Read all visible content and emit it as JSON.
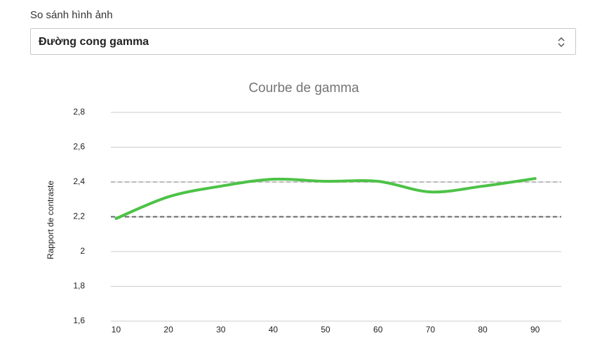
{
  "form": {
    "label": "So sánh hình ảnh",
    "select_value": "Đường cong gamma"
  },
  "chart_data": {
    "type": "line",
    "title": "Courbe de gamma",
    "y_label": "Rapport de contraste",
    "x": [
      10,
      20,
      30,
      40,
      50,
      60,
      70,
      80,
      90
    ],
    "series": [
      {
        "color": "#4dc247",
        "values": [
          2.19,
          2.315,
          2.376,
          2.416,
          2.404,
          2.404,
          2.343,
          2.376,
          2.42
        ]
      }
    ],
    "reference_lines": [
      {
        "value": 2.4,
        "color": "#bbbbbb"
      },
      {
        "value": 2.2,
        "color": "#666666"
      }
    ],
    "xlim": [
      9,
      95
    ],
    "xticks": [
      10,
      20,
      30,
      40,
      50,
      60,
      70,
      80,
      90
    ],
    "ylim": [
      1.6,
      2.8
    ],
    "yticks": [
      {
        "value": 1.6,
        "label": "1,6"
      },
      {
        "value": 1.8,
        "label": "1,8"
      },
      2,
      {
        "value": 2.2,
        "label": "2,2"
      },
      {
        "value": 2.4,
        "label": "2,4"
      },
      {
        "value": 2.6,
        "label": "2,6"
      },
      {
        "value": 2.8,
        "label": "2,8"
      }
    ],
    "grid": true,
    "smooth": true
  }
}
